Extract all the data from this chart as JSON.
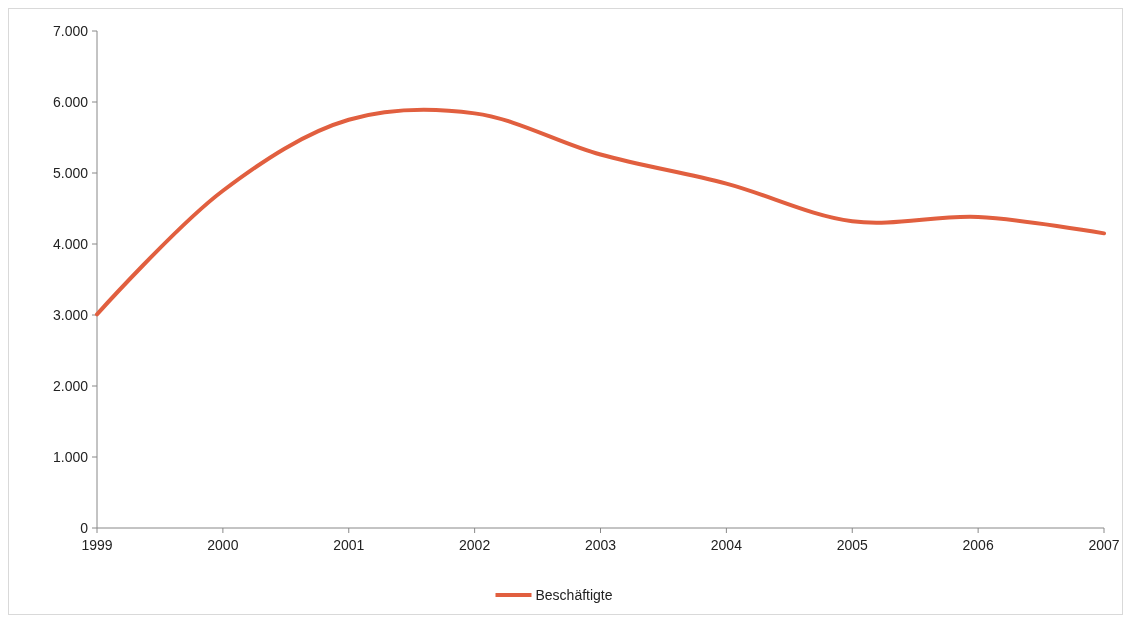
{
  "chart_data": {
    "type": "line",
    "categories": [
      "1999",
      "2000",
      "2001",
      "2002",
      "2003",
      "2004",
      "2005",
      "2006",
      "2007"
    ],
    "series": [
      {
        "name": "Beschäftigte",
        "color": "#e15f3f",
        "values": [
          3010,
          4750,
          5750,
          5840,
          5260,
          4850,
          4320,
          4380,
          4150
        ]
      }
    ],
    "ylim": [
      0,
      7000
    ],
    "yticks": [
      0,
      {
        "value": 1000,
        "label": "1.000"
      },
      {
        "value": 2000,
        "label": "2.000"
      },
      {
        "value": 3000,
        "label": "3.000"
      },
      {
        "value": 4000,
        "label": "4.000"
      },
      {
        "value": 5000,
        "label": "5.000"
      },
      {
        "value": 6000,
        "label": "6.000"
      },
      {
        "value": 7000,
        "label": "7.000"
      }
    ],
    "grid": false,
    "legend": "bottom",
    "line_style": "solid",
    "marker": "none"
  }
}
